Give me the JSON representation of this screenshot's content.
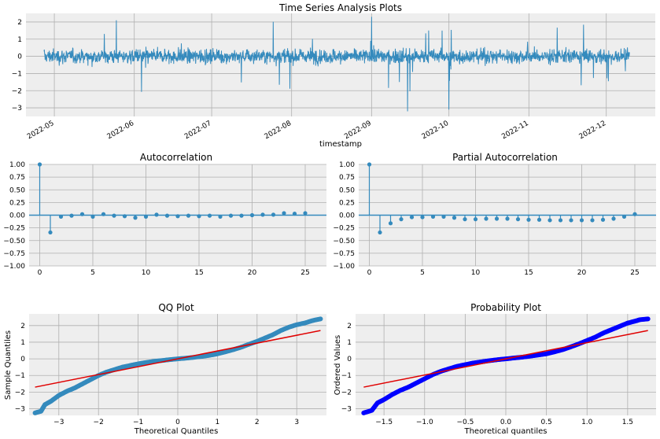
{
  "colors": {
    "page_bg": "#ffffff",
    "axes_bg": "#eeeeee",
    "grid": "#b0b0b0",
    "line_blue": "#348abd",
    "qq_line": "#e00000",
    "prob_markers": "#0000ff"
  },
  "chart_data": [
    {
      "type": "line",
      "title": "Time Series Analysis Plots",
      "xlabel": "timestamp",
      "ylabel": "",
      "x_ticks": [
        "2022-05",
        "2022-06",
        "2022-07",
        "2022-08",
        "2022-09",
        "2022-10",
        "2022-11",
        "2022-12"
      ],
      "xlim": [
        "2022-04-20",
        "2022-12-20"
      ],
      "data_range": [
        "2022-04-27",
        "2022-12-10"
      ],
      "y_ticks": [
        "2",
        "1",
        "0",
        "−1",
        "−2",
        "−3"
      ],
      "ylim": [
        -3.5,
        2.5
      ],
      "grid": true,
      "annotation_series": [
        {
          "x": "2022-05-25",
          "y": 2.1
        },
        {
          "x": "2022-09-15",
          "y": -3.2
        },
        {
          "x": "2022-09-01",
          "y": 2.3
        },
        {
          "x": "2022-10-01",
          "y": -3.1
        }
      ]
    },
    {
      "type": "stem",
      "title": "Autocorrelation",
      "xlabel": "",
      "ylabel": "",
      "x_ticks": [
        "0",
        "5",
        "10",
        "15",
        "20",
        "25"
      ],
      "xlim": [
        -1,
        27
      ],
      "y_ticks": [
        "1.00",
        "0.75",
        "0.50",
        "0.25",
        "0.00",
        "−0.25",
        "−0.50",
        "−0.75",
        "−1.00"
      ],
      "ylim": [
        -1.0,
        1.0
      ],
      "grid": true,
      "lags": [
        0,
        1,
        2,
        3,
        4,
        5,
        6,
        7,
        8,
        9,
        10,
        11,
        12,
        13,
        14,
        15,
        16,
        17,
        18,
        19,
        20,
        21,
        22,
        23,
        24,
        25
      ],
      "values": [
        1.0,
        -0.34,
        -0.03,
        -0.01,
        0.02,
        -0.03,
        0.02,
        -0.01,
        -0.02,
        -0.05,
        -0.03,
        0.01,
        -0.01,
        -0.02,
        -0.01,
        -0.02,
        -0.01,
        -0.03,
        -0.01,
        -0.01,
        0.0,
        0.01,
        0.01,
        0.04,
        0.03,
        0.04
      ]
    },
    {
      "type": "stem",
      "title": "Partial Autocorrelation",
      "xlabel": "",
      "ylabel": "",
      "x_ticks": [
        "0",
        "5",
        "10",
        "15",
        "20",
        "25"
      ],
      "xlim": [
        -1,
        27
      ],
      "y_ticks": [
        "1.00",
        "0.75",
        "0.50",
        "0.25",
        "0.00",
        "−0.25",
        "−0.50",
        "−0.75",
        "−1.00"
      ],
      "ylim": [
        -1.0,
        1.0
      ],
      "grid": true,
      "lags": [
        0,
        1,
        2,
        3,
        4,
        5,
        6,
        7,
        8,
        9,
        10,
        11,
        12,
        13,
        14,
        15,
        16,
        17,
        18,
        19,
        20,
        21,
        22,
        23,
        24,
        25
      ],
      "values": [
        1.0,
        -0.34,
        -0.16,
        -0.08,
        -0.04,
        -0.04,
        -0.03,
        -0.03,
        -0.05,
        -0.08,
        -0.08,
        -0.07,
        -0.07,
        -0.07,
        -0.08,
        -0.09,
        -0.09,
        -0.1,
        -0.1,
        -0.1,
        -0.1,
        -0.1,
        -0.09,
        -0.07,
        -0.03,
        0.02
      ]
    },
    {
      "type": "scatter",
      "title": "QQ Plot",
      "xlabel": "Theoretical Quantiles",
      "ylabel": "Sample Quantiles",
      "x_ticks": [
        "−3",
        "−2",
        "−1",
        "0",
        "1",
        "2",
        "3"
      ],
      "xlim": [
        -3.75,
        3.75
      ],
      "y_ticks": [
        "2",
        "1",
        "0",
        "−1",
        "−2",
        "−3"
      ],
      "ylim": [
        -3.4,
        2.7
      ],
      "grid": true,
      "points": [
        [
          -3.6,
          -3.25
        ],
        [
          -3.45,
          -3.15
        ],
        [
          -3.35,
          -2.75
        ],
        [
          -3.2,
          -2.55
        ],
        [
          -3.0,
          -2.2
        ],
        [
          -2.8,
          -1.95
        ],
        [
          -2.6,
          -1.75
        ],
        [
          -2.4,
          -1.5
        ],
        [
          -2.2,
          -1.25
        ],
        [
          -2.0,
          -1.0
        ],
        [
          -1.8,
          -0.8
        ],
        [
          -1.6,
          -0.65
        ],
        [
          -1.4,
          -0.5
        ],
        [
          -1.2,
          -0.4
        ],
        [
          -1.0,
          -0.3
        ],
        [
          -0.8,
          -0.22
        ],
        [
          -0.6,
          -0.15
        ],
        [
          -0.4,
          -0.1
        ],
        [
          -0.2,
          -0.05
        ],
        [
          0.0,
          0.0
        ],
        [
          0.2,
          0.04
        ],
        [
          0.4,
          0.09
        ],
        [
          0.6,
          0.14
        ],
        [
          0.8,
          0.21
        ],
        [
          1.0,
          0.3
        ],
        [
          1.2,
          0.42
        ],
        [
          1.4,
          0.55
        ],
        [
          1.6,
          0.7
        ],
        [
          1.8,
          0.88
        ],
        [
          2.0,
          1.05
        ],
        [
          2.2,
          1.25
        ],
        [
          2.4,
          1.45
        ],
        [
          2.6,
          1.7
        ],
        [
          2.8,
          1.9
        ],
        [
          3.0,
          2.05
        ],
        [
          3.2,
          2.15
        ],
        [
          3.4,
          2.3
        ],
        [
          3.6,
          2.4
        ]
      ],
      "fit_line": {
        "x": [
          -3.6,
          3.6
        ],
        "y": [
          -1.7,
          1.7
        ]
      }
    },
    {
      "type": "scatter",
      "title": "Probability Plot",
      "xlabel": "Theoretical quantiles",
      "ylabel": "Ordered Values",
      "x_ticks": [
        "−1.5",
        "−1.0",
        "−0.5",
        "0.0",
        "0.5",
        "1.0",
        "1.5"
      ],
      "xlim": [
        -1.85,
        1.85
      ],
      "y_ticks": [
        "2",
        "1",
        "0",
        "−1",
        "−2",
        "−3"
      ],
      "ylim": [
        -3.4,
        2.7
      ],
      "grid": true,
      "points": [
        [
          -1.75,
          -3.25
        ],
        [
          -1.65,
          -3.1
        ],
        [
          -1.58,
          -2.65
        ],
        [
          -1.5,
          -2.45
        ],
        [
          -1.4,
          -2.15
        ],
        [
          -1.3,
          -1.9
        ],
        [
          -1.2,
          -1.7
        ],
        [
          -1.1,
          -1.45
        ],
        [
          -1.0,
          -1.2
        ],
        [
          -0.9,
          -0.95
        ],
        [
          -0.8,
          -0.75
        ],
        [
          -0.7,
          -0.6
        ],
        [
          -0.6,
          -0.45
        ],
        [
          -0.5,
          -0.35
        ],
        [
          -0.4,
          -0.25
        ],
        [
          -0.3,
          -0.18
        ],
        [
          -0.2,
          -0.11
        ],
        [
          -0.1,
          -0.05
        ],
        [
          0.0,
          0.0
        ],
        [
          0.1,
          0.05
        ],
        [
          0.2,
          0.1
        ],
        [
          0.3,
          0.16
        ],
        [
          0.4,
          0.23
        ],
        [
          0.5,
          0.3
        ],
        [
          0.6,
          0.42
        ],
        [
          0.7,
          0.55
        ],
        [
          0.8,
          0.72
        ],
        [
          0.9,
          0.9
        ],
        [
          1.0,
          1.1
        ],
        [
          1.1,
          1.3
        ],
        [
          1.2,
          1.55
        ],
        [
          1.3,
          1.75
        ],
        [
          1.4,
          1.95
        ],
        [
          1.5,
          2.15
        ],
        [
          1.58,
          2.25
        ],
        [
          1.65,
          2.35
        ],
        [
          1.75,
          2.4
        ]
      ],
      "fit_line": {
        "x": [
          -1.75,
          1.75
        ],
        "y": [
          -1.7,
          1.7
        ]
      }
    }
  ]
}
